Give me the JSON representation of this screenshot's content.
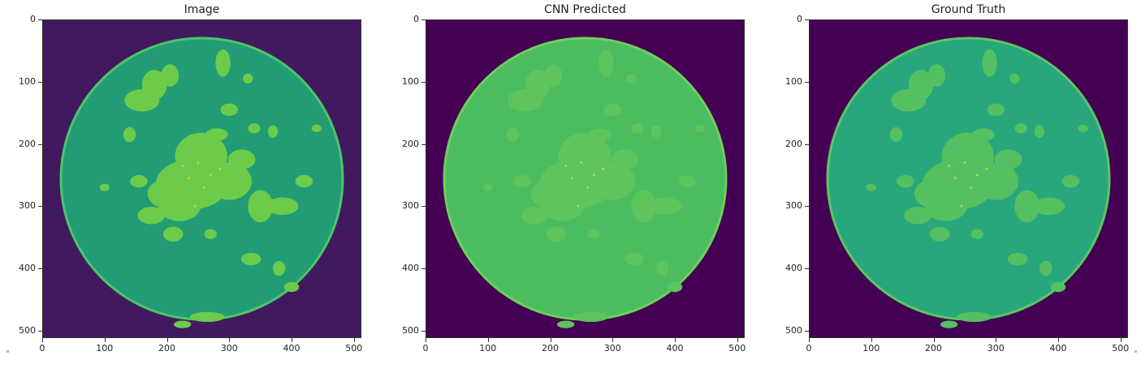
{
  "panels": [
    {
      "title": "Image",
      "colors": {
        "background": "#41195e",
        "disk": "#229c74",
        "rim": "#4dc56a",
        "blobs": "#6ccb4a",
        "bright": "#c8df2a"
      }
    },
    {
      "title": "CNN Predicted",
      "colors": {
        "background": "#440154",
        "disk": "#4cbc60",
        "rim": "#6fd05a",
        "blobs": "#5ec45c",
        "bright": "#b6dc3a"
      }
    },
    {
      "title": "Ground Truth",
      "colors": {
        "background": "#440154",
        "disk": "#28a77c",
        "rim": "#5ec564",
        "blobs": "#54c062",
        "bright": "#b6dc3a"
      }
    }
  ],
  "axes": {
    "yticks": [
      "0",
      "100",
      "200",
      "300",
      "400",
      "500"
    ],
    "xticks": [
      "0",
      "100",
      "200",
      "300",
      "400",
      "500"
    ],
    "range": [
      0,
      512
    ]
  }
}
